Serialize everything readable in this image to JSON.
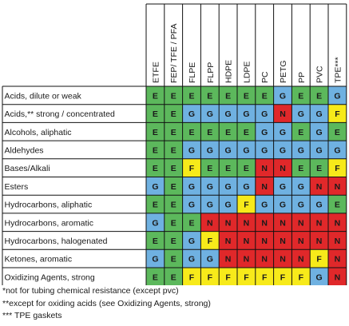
{
  "chart_data": {
    "type": "table",
    "title": "",
    "columns": [
      "ETFE",
      "FEP/ TFE / PFA",
      "FLPE",
      "FLPP",
      "HDPE",
      "LDPE",
      "PC",
      "PETG",
      "PP",
      "PVC",
      "TPE***"
    ],
    "rows": [
      {
        "label": "Acids, dilute or weak",
        "values": [
          "E",
          "E",
          "E",
          "E",
          "E",
          "E",
          "E",
          "G",
          "E",
          "E",
          "G"
        ]
      },
      {
        "label": "Acids,** strong / concentrated",
        "values": [
          "E",
          "E",
          "G",
          "G",
          "G",
          "G",
          "G",
          "N",
          "G",
          "G",
          "F"
        ]
      },
      {
        "label": "Alcohols, aliphatic",
        "values": [
          "E",
          "E",
          "E",
          "E",
          "E",
          "E",
          "G",
          "G",
          "E",
          "G",
          "E"
        ]
      },
      {
        "label": "Aldehydes",
        "values": [
          "E",
          "E",
          "G",
          "G",
          "G",
          "G",
          "G",
          "G",
          "G",
          "G",
          "G"
        ]
      },
      {
        "label": "Bases/Alkali",
        "values": [
          "E",
          "E",
          "F",
          "E",
          "E",
          "E",
          "N",
          "N",
          "E",
          "E",
          "F"
        ]
      },
      {
        "label": "Esters",
        "values": [
          "G",
          "E",
          "G",
          "G",
          "G",
          "G",
          "N",
          "G",
          "G",
          "N",
          "N"
        ]
      },
      {
        "label": "Hydrocarbons, aliphatic",
        "values": [
          "E",
          "E",
          "G",
          "G",
          "G",
          "F",
          "G",
          "G",
          "G",
          "G",
          "E"
        ]
      },
      {
        "label": "Hydrocarbons, aromatic",
        "values": [
          "G",
          "E",
          "E",
          "N",
          "N",
          "N",
          "N",
          "N",
          "N",
          "N",
          "N"
        ]
      },
      {
        "label": "Hydrocarbons, halogenated",
        "values": [
          "E",
          "E",
          "G",
          "F",
          "N",
          "N",
          "N",
          "N",
          "N",
          "N",
          "N"
        ]
      },
      {
        "label": "Ketones, aromatic",
        "values": [
          "G",
          "E",
          "G",
          "G",
          "N",
          "N",
          "N",
          "N",
          "N",
          "F",
          "N"
        ]
      },
      {
        "label": "Oxidizing Agents, strong",
        "values": [
          "E",
          "E",
          "F",
          "F",
          "F",
          "F",
          "F",
          "F",
          "F",
          "G",
          "N"
        ]
      }
    ],
    "rating_colors": {
      "E": "#5cb85c",
      "G": "#6fb1e1",
      "F": "#f7ea1a",
      "N": "#e0282a"
    }
  },
  "footnotes": [
    "*not for tubing chemical resistance (except pvc)",
    "**except for oxiding acids (see Oxidizing Agents, strong)",
    "*** TPE gaskets"
  ]
}
